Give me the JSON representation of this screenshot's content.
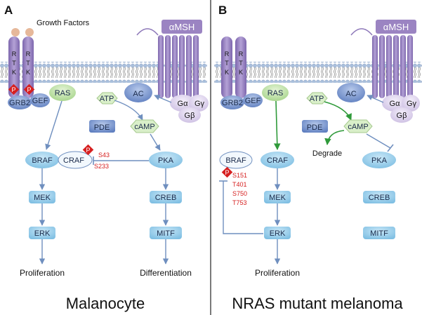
{
  "panels": {
    "a": {
      "letter": "A",
      "growth_factors": "Growth Factors",
      "rtk_letters": [
        "R",
        "T",
        "K"
      ],
      "grb2": "GRB2",
      "gef": "GEF",
      "ras": "RAS",
      "p": "P",
      "atp": "ATP",
      "ac": "AC",
      "amsh": "αMSH",
      "g_alpha": "Gα",
      "g_gamma": "Gγ",
      "g_beta": "Gβ",
      "pde": "PDE",
      "camp": "cAMP",
      "braf": "BRAF",
      "craf": "CRAF",
      "pka": "PKA",
      "craf_sites": [
        "S43",
        "S233"
      ],
      "mek": "MEK",
      "erk": "ERK",
      "creb": "CREB",
      "mitf": "MITF",
      "proliferation": "Proliferation",
      "differentiation": "Differentiation",
      "caption": "Malanocyte"
    },
    "b": {
      "letter": "B",
      "amsh": "αMSH",
      "rtk_letters": [
        "R",
        "T",
        "K"
      ],
      "grb2": "GRB2",
      "gef": "GEF",
      "ras": "RAS",
      "atp": "ATP",
      "ac": "AC",
      "g_alpha": "Gα",
      "g_gamma": "Gγ",
      "g_beta": "Gβ",
      "pde": "PDE",
      "camp": "cAMP",
      "degrade": "Degrade",
      "braf": "BRAF",
      "p": "P",
      "braf_sites": [
        "S151",
        "T401",
        "S750",
        "T753"
      ],
      "craf": "CRAF",
      "pka": "PKA",
      "mek": "MEK",
      "creb": "CREB",
      "erk": "ERK",
      "mitf": "MITF",
      "proliferation": "Proliferation",
      "caption": "NRAS mutant melanoma"
    }
  },
  "colors": {
    "membrane": "#9fb6d4",
    "receptor": "#9b84c2",
    "node_fill": "#9ccfeb",
    "arrow": "#6f8fbf",
    "green_arrow": "#2f9a3a",
    "phospho": "#d62020"
  }
}
